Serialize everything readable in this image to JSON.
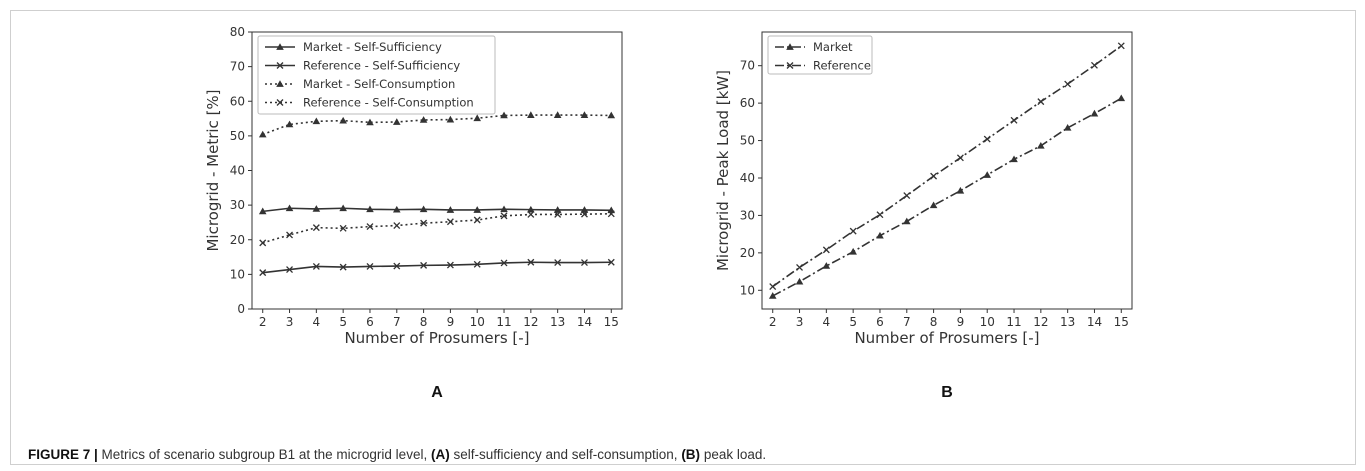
{
  "caption": {
    "figure_label": "FIGURE 7 |",
    "text_1": " Metrics of scenario subgroup B1 at the microgrid level, ",
    "part_a": "(A)",
    "text_2": " self-sufficiency and self-consumption, ",
    "part_b": "(B)",
    "text_3": " peak load."
  },
  "chart_data": [
    {
      "type": "line",
      "panel_label": "A",
      "xlabel": "Number of Prosumers [-]",
      "ylabel": "Microgrid - Metric [%]",
      "x": [
        2,
        3,
        4,
        5,
        6,
        7,
        8,
        9,
        10,
        11,
        12,
        13,
        14,
        15
      ],
      "xlim": [
        1.6,
        15.4
      ],
      "ylim": [
        0,
        80
      ],
      "yticks": [
        0,
        10,
        20,
        30,
        40,
        50,
        60,
        70,
        80
      ],
      "grid": false,
      "legend_position": "top-left",
      "series": [
        {
          "name": "Market - Self-Sufficiency",
          "line_style": "solid",
          "marker": "triangle",
          "values": [
            28.2,
            29.1,
            28.9,
            29.1,
            28.8,
            28.7,
            28.8,
            28.6,
            28.6,
            28.8,
            28.7,
            28.6,
            28.6,
            28.5
          ]
        },
        {
          "name": "Reference - Self-Sufficiency",
          "line_style": "solid",
          "marker": "x",
          "values": [
            10.5,
            11.4,
            12.3,
            12.1,
            12.3,
            12.4,
            12.6,
            12.7,
            12.9,
            13.3,
            13.5,
            13.4,
            13.4,
            13.5
          ]
        },
        {
          "name": "Market - Self-Consumption",
          "line_style": "dotted",
          "marker": "triangle",
          "values": [
            50.4,
            53.3,
            54.2,
            54.4,
            53.9,
            54.0,
            54.6,
            54.7,
            55.1,
            55.9,
            56.0,
            56.0,
            56.0,
            55.9
          ]
        },
        {
          "name": "Reference - Self-Consumption",
          "line_style": "dotted",
          "marker": "x",
          "values": [
            19.1,
            21.4,
            23.5,
            23.3,
            23.8,
            24.1,
            24.8,
            25.2,
            25.7,
            26.9,
            27.3,
            27.3,
            27.4,
            27.5
          ]
        }
      ]
    },
    {
      "type": "line",
      "panel_label": "B",
      "xlabel": "Number of Prosumers [-]",
      "ylabel": "Microgrid - Peak Load [kW]",
      "x": [
        2,
        3,
        4,
        5,
        6,
        7,
        8,
        9,
        10,
        11,
        12,
        13,
        14,
        15
      ],
      "xlim": [
        1.6,
        15.4
      ],
      "ylim": [
        5,
        79
      ],
      "yticks": [
        10,
        20,
        30,
        40,
        50,
        60,
        70
      ],
      "grid": false,
      "legend_position": "top-left",
      "series": [
        {
          "name": "Market",
          "line_style": "dashdot",
          "marker": "triangle",
          "values": [
            8.5,
            12.3,
            16.5,
            20.3,
            24.6,
            28.4,
            32.7,
            36.6,
            40.8,
            45.0,
            48.6,
            53.4,
            57.2,
            61.3
          ]
        },
        {
          "name": "Reference",
          "line_style": "dashdot",
          "marker": "x",
          "values": [
            11.0,
            16.1,
            20.8,
            25.8,
            30.2,
            35.3,
            40.5,
            45.4,
            50.4,
            55.4,
            60.4,
            65.1,
            70.1,
            75.3
          ]
        }
      ]
    }
  ]
}
